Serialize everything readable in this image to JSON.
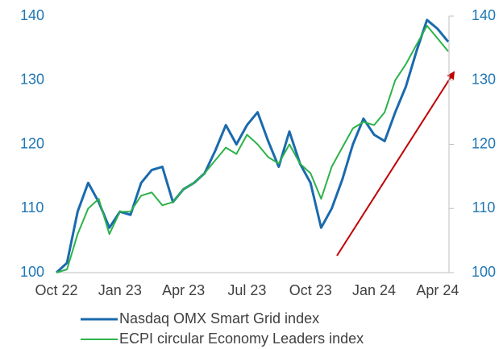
{
  "chart_data": {
    "type": "line",
    "categories": [
      "Oct 22",
      null,
      null,
      null,
      null,
      null,
      "Jan 23",
      null,
      null,
      null,
      null,
      null,
      "Apr 23",
      null,
      null,
      null,
      null,
      null,
      "Jul 23",
      null,
      null,
      null,
      null,
      null,
      "Oct 23",
      null,
      null,
      null,
      null,
      null,
      "Jan 24",
      null,
      null,
      null,
      null,
      null,
      "Apr 24",
      null
    ],
    "series": [
      {
        "name": "Nasdaq OMX Smart Grid index",
        "color": "#1a6aad",
        "values": [
          100,
          101.5,
          109.5,
          114,
          111,
          107,
          109.5,
          109,
          114,
          116,
          116.5,
          111,
          113,
          114,
          115.5,
          119,
          123,
          120,
          123,
          125,
          120.5,
          116.5,
          122,
          117,
          114,
          107,
          110,
          114.5,
          120,
          124,
          121.5,
          120.5,
          125,
          129,
          134.5,
          139.4,
          138,
          136
        ]
      },
      {
        "name": "ECPI circular Economy Leaders index",
        "color": "#2db24a",
        "axis": "y2",
        "values": [
          100,
          100.5,
          106,
          110,
          111.5,
          106,
          109.5,
          109.5,
          112,
          112.5,
          110.5,
          111,
          113,
          114,
          115.5,
          117.5,
          119.5,
          118.5,
          121.5,
          120,
          118,
          117,
          120,
          117,
          115.5,
          111.5,
          116.5,
          119.5,
          122.5,
          123.5,
          123,
          125,
          130,
          132.5,
          135.5,
          138.5,
          136.5,
          134.5
        ]
      }
    ],
    "ylim": [
      100,
      140
    ],
    "yticks": [
      100,
      110,
      120,
      130,
      140
    ],
    "y2lim": [
      100,
      140
    ],
    "y2ticks": [
      100,
      110,
      120,
      130,
      140
    ],
    "grid": false,
    "legend": "bottom"
  }
}
